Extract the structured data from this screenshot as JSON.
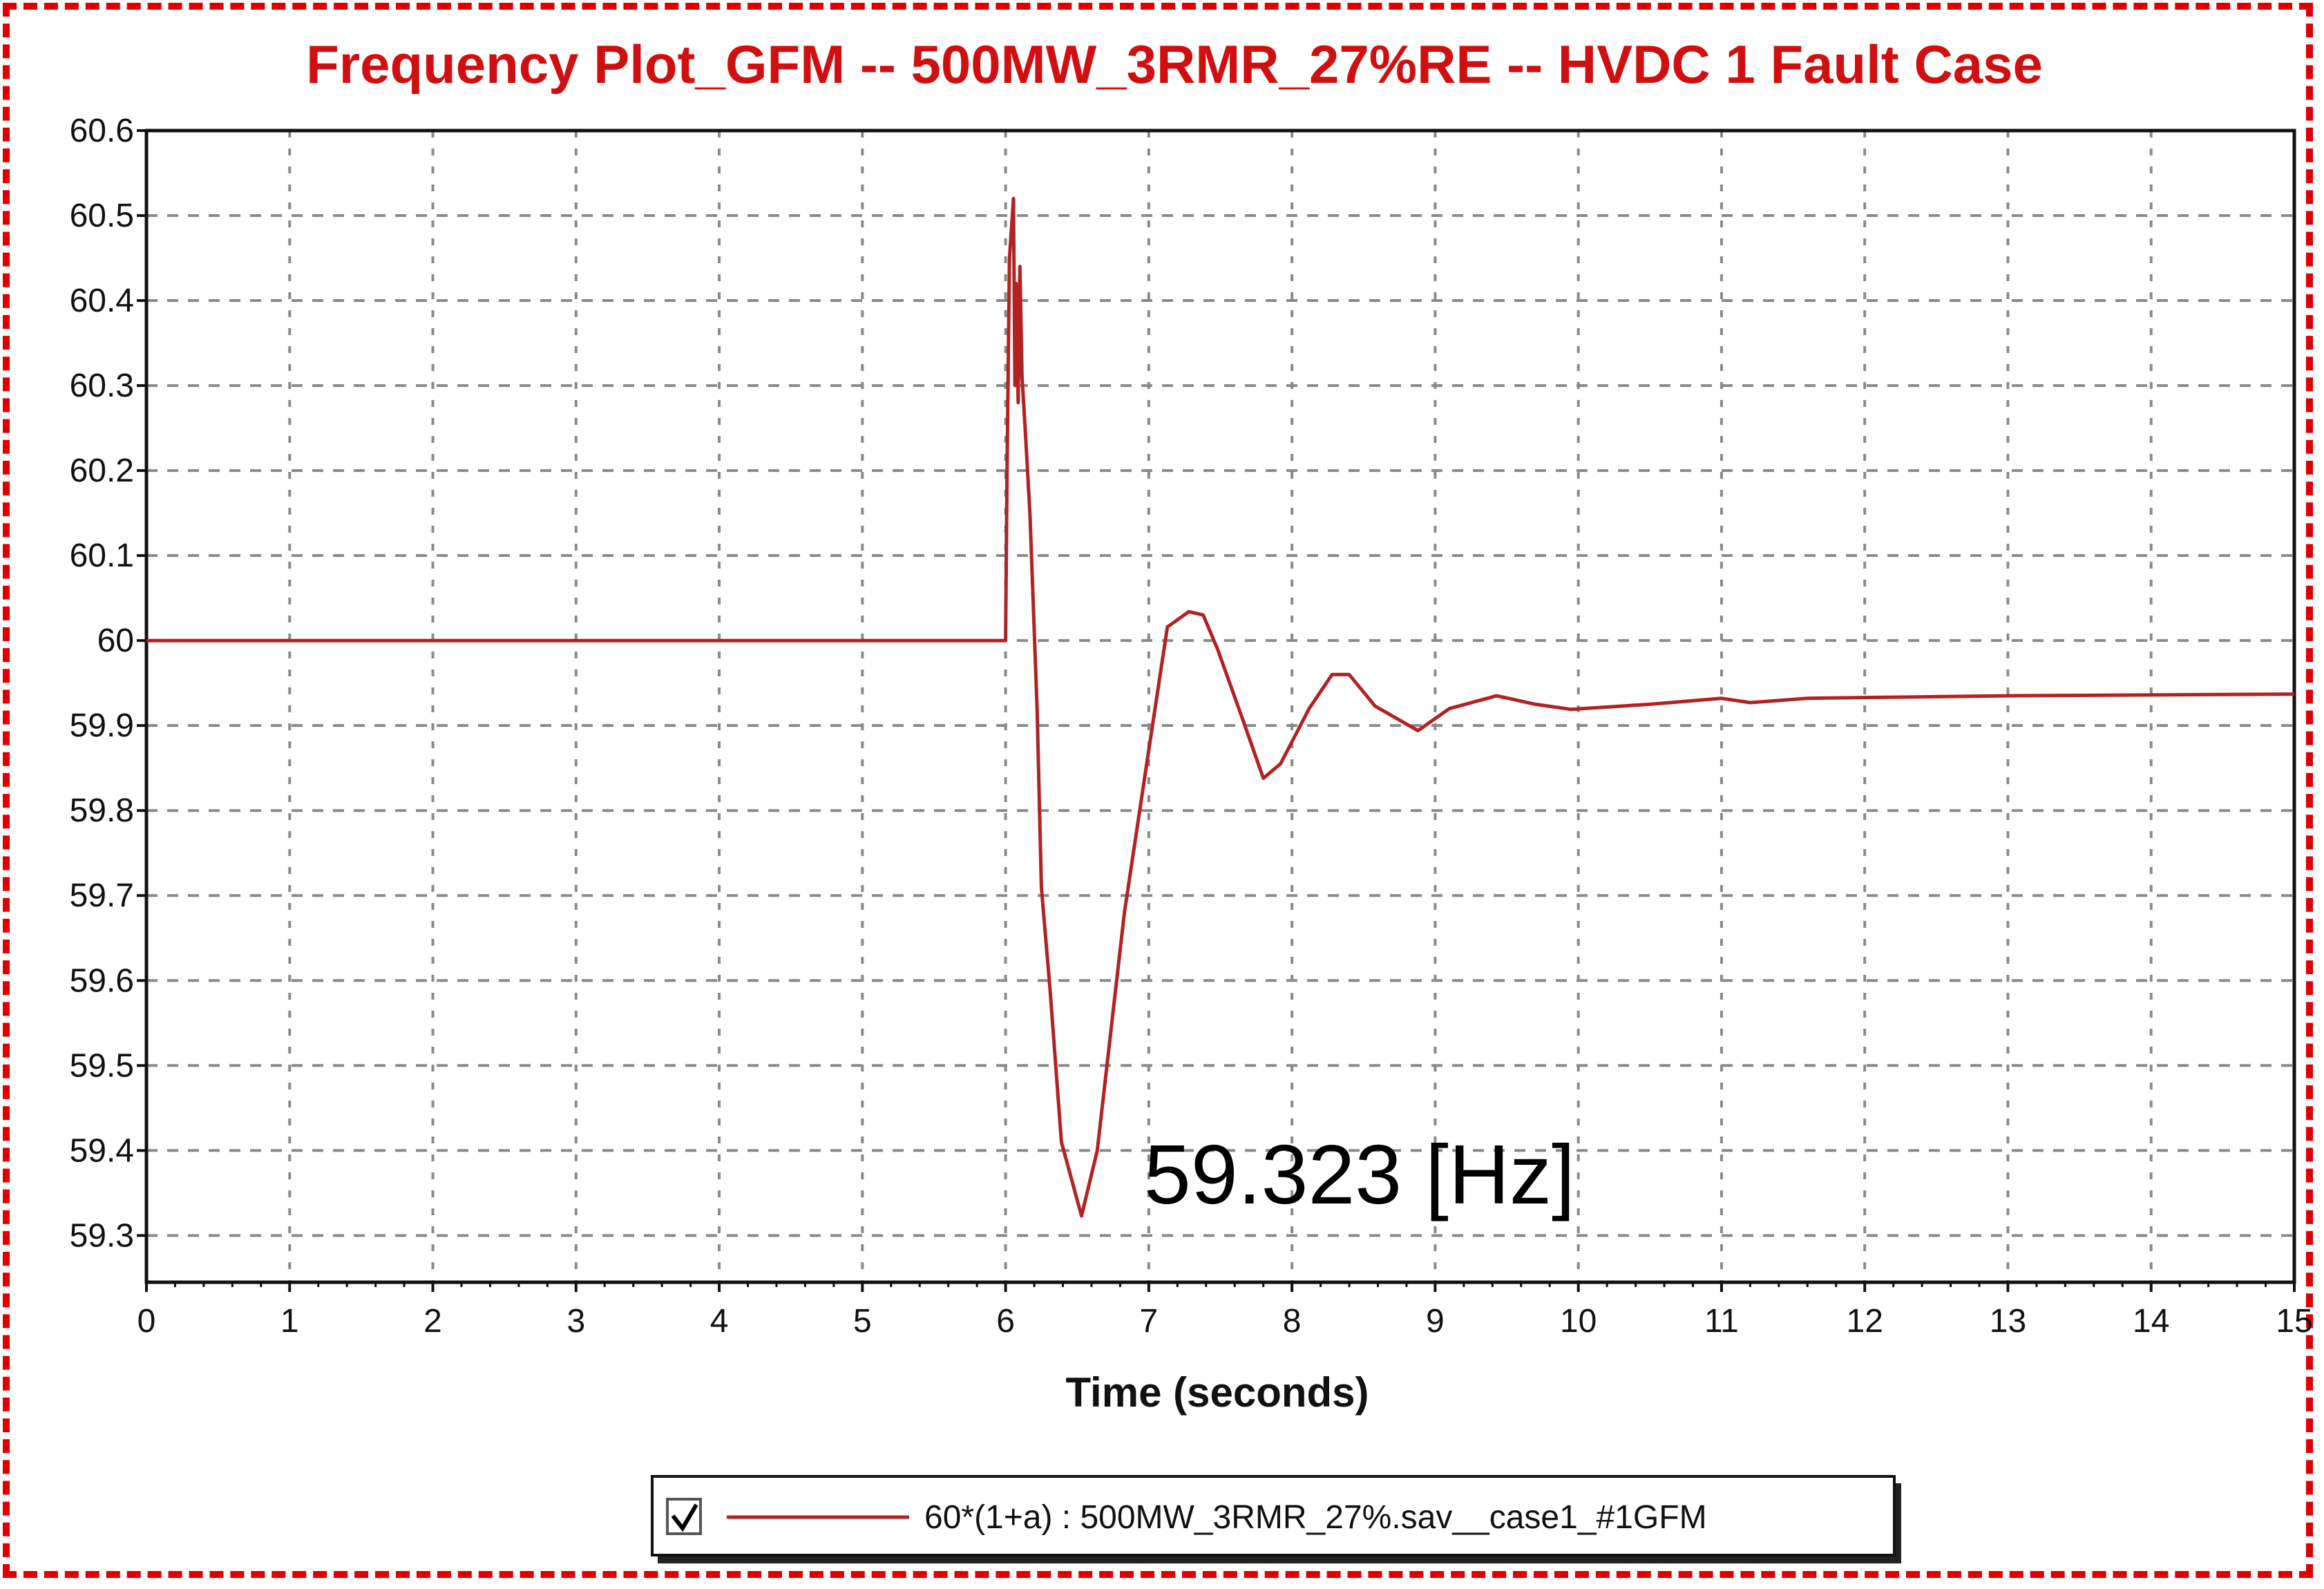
{
  "chart_data": {
    "type": "line",
    "title": "Frequency Plot_GFM -- 500MW_3RMR_27%RE -- HVDC 1 Fault Case",
    "xlabel": "Time (seconds)",
    "ylabel": "",
    "xlim": [
      0,
      15
    ],
    "ylim": [
      59.245,
      60.6
    ],
    "grid": true,
    "legend_position": "bottom-center",
    "x_ticks": [
      "0",
      "1",
      "2",
      "3",
      "4",
      "5",
      "6",
      "7",
      "8",
      "9",
      "10",
      "11",
      "12",
      "13",
      "14",
      "15"
    ],
    "y_ticks": [
      {
        "value": 60.6,
        "label": "60.6"
      },
      {
        "value": 60.5,
        "label": "60.5"
      },
      {
        "value": 60.4,
        "label": "60.4"
      },
      {
        "value": 60.3,
        "label": "60.3"
      },
      {
        "value": 60.2,
        "label": "60.2"
      },
      {
        "value": 60.1,
        "label": "60.1"
      },
      {
        "value": 60.0,
        "label": "60"
      },
      {
        "value": 59.9,
        "label": "59.9"
      },
      {
        "value": 59.8,
        "label": "59.8"
      },
      {
        "value": 59.7,
        "label": "59.7"
      },
      {
        "value": 59.6,
        "label": "59.6"
      },
      {
        "value": 59.5,
        "label": "59.5"
      },
      {
        "value": 59.4,
        "label": "59.4"
      },
      {
        "value": 59.3,
        "label": "59.3"
      }
    ],
    "annotation": "59.323 [Hz]",
    "series": [
      {
        "name": "60*(1+a) : 500MW_3RMR_27%.sav__case1_#1GFM",
        "color": "#b22222",
        "legend_checked": true,
        "x": [
          0,
          6.0,
          6.01,
          6.027,
          6.055,
          6.065,
          6.074,
          6.088,
          6.1,
          6.115,
          6.14,
          6.17,
          6.22,
          6.25,
          6.31,
          6.39,
          6.53,
          6.64,
          6.83,
          6.99,
          7.13,
          7.28,
          7.38,
          7.48,
          7.65,
          7.8,
          7.92,
          8.12,
          8.28,
          8.4,
          8.58,
          8.88,
          9.1,
          9.43,
          9.7,
          9.95,
          10.5,
          11.0,
          11.2,
          11.6,
          12.0,
          13.0,
          14.0,
          15.0
        ],
        "y": [
          60.0,
          60.0,
          60.2,
          60.45,
          60.52,
          60.3,
          60.42,
          60.28,
          60.44,
          60.31,
          60.24,
          60.15,
          59.92,
          59.71,
          59.59,
          59.41,
          59.323,
          59.4,
          59.68,
          59.86,
          60.016,
          60.034,
          60.03,
          59.99,
          59.91,
          59.838,
          59.855,
          59.92,
          59.96,
          59.96,
          59.923,
          59.894,
          59.92,
          59.935,
          59.925,
          59.919,
          59.925,
          59.932,
          59.927,
          59.932,
          59.933,
          59.935,
          59.936,
          59.937
        ]
      }
    ]
  }
}
